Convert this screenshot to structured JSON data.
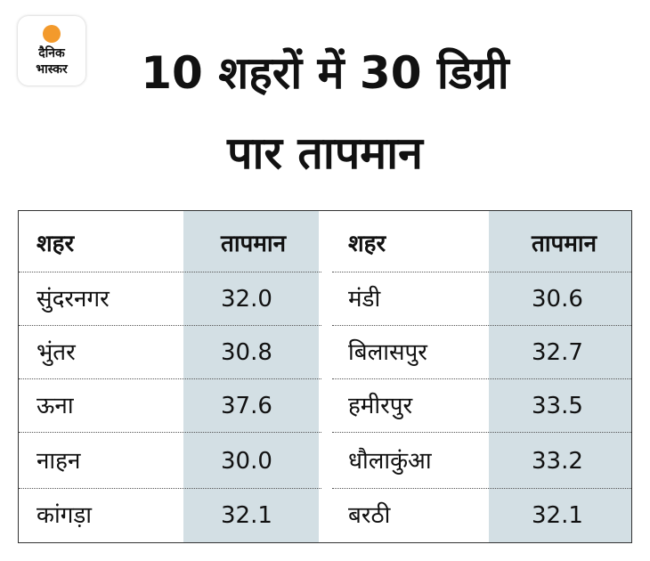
{
  "logo": {
    "line1": "दैनिक",
    "line2": "भास्कर",
    "brand_color": "#f39a2c"
  },
  "title": {
    "line1": "10 शहरों में 30 डिग्री",
    "line2": "पार तापमान"
  },
  "chart_data": {
    "type": "table",
    "title": "10 शहरों में 30 डिग्री पार तापमान",
    "columns": [
      "शहर",
      "तापमान",
      "शहर",
      "तापमान"
    ],
    "rows": [
      [
        "सुंदरनगर",
        "32.0",
        "मंडी",
        "30.6"
      ],
      [
        "भुंतर",
        "30.8",
        "बिलासपुर",
        "32.7"
      ],
      [
        "ऊना",
        "37.6",
        "हमीरपुर",
        "33.5"
      ],
      [
        "नाहन",
        "30.0",
        "धौलाकुंआ",
        "33.2"
      ],
      [
        "कांगड़ा",
        "32.1",
        "बरठी",
        "32.1"
      ]
    ],
    "shade_color": "#d3dfe4"
  }
}
